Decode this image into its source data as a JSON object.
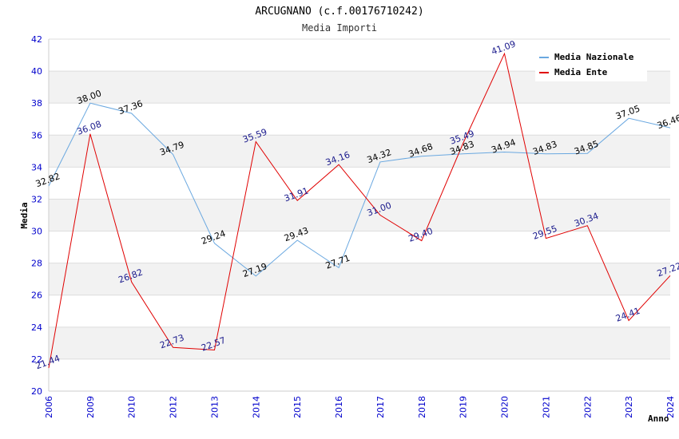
{
  "chart_data": {
    "type": "line",
    "title": "ARCUGNANO (c.f.00176710242)",
    "subtitle": "Media Importi",
    "xlabel": "Anno",
    "ylabel": "Media",
    "ylim": [
      20,
      42
    ],
    "yticks": [
      20,
      22,
      24,
      26,
      28,
      30,
      32,
      34,
      36,
      38,
      40,
      42
    ],
    "categories": [
      "2006",
      "2009",
      "2010",
      "2012",
      "2013",
      "2014",
      "2015",
      "2016",
      "2017",
      "2018",
      "2019",
      "2020",
      "2021",
      "2022",
      "2023",
      "2024"
    ],
    "series": [
      {
        "name": "Media Nazionale",
        "color": "#6aa8e0",
        "values": [
          32.82,
          38.0,
          37.36,
          34.79,
          29.24,
          27.19,
          29.43,
          27.71,
          34.32,
          34.68,
          34.83,
          34.94,
          34.83,
          34.85,
          37.05,
          36.46
        ],
        "labels": [
          "32.82",
          "38.00",
          "37.36",
          "34.79",
          "29.24",
          "27.19",
          "29.43",
          "27.71",
          "34.32",
          "34.68",
          "34.83",
          "34.94",
          "34.83",
          "34.85",
          "37.05",
          "36.46"
        ]
      },
      {
        "name": "Media Ente",
        "color": "#e00000",
        "values": [
          21.44,
          36.08,
          26.82,
          22.73,
          22.57,
          35.59,
          31.91,
          34.16,
          31.0,
          29.4,
          35.49,
          41.09,
          29.55,
          30.34,
          24.41,
          27.22
        ],
        "labels": [
          "21.44",
          "36.08",
          "26.82",
          "22.73",
          "22.57",
          "35.59",
          "31.91",
          "34.16",
          "31.00",
          "29.40",
          "35.49",
          "41.09",
          "29.55",
          "30.34",
          "24.41",
          "27.22"
        ]
      }
    ],
    "grid": true,
    "legend": "top-right"
  }
}
